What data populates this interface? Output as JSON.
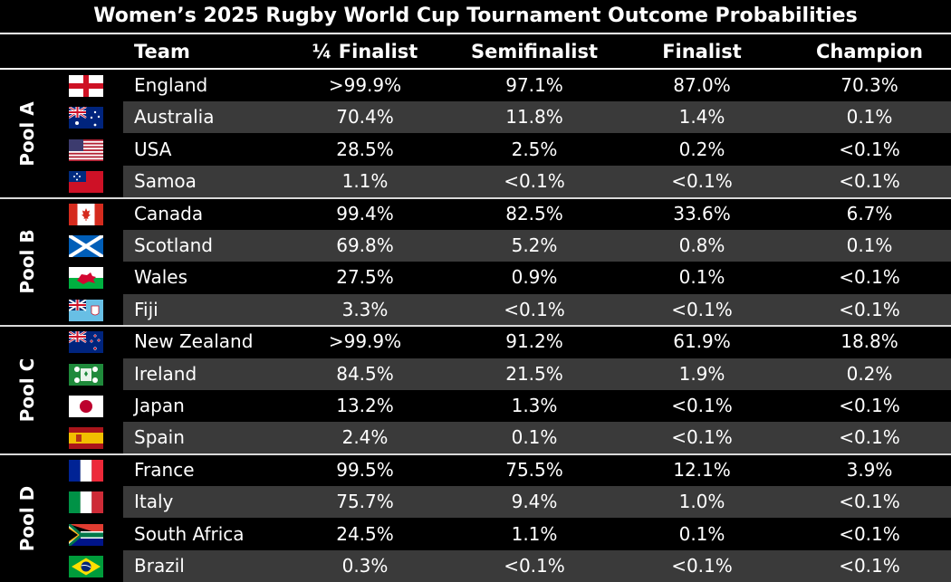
{
  "chart_data": {
    "type": "table",
    "title": "Women’s 2025 Rugby World Cup Tournament Outcome Probabilities",
    "columns": [
      "Team",
      "¼ Finalist",
      "Semifinalist",
      "Finalist",
      "Champion"
    ],
    "pools": [
      {
        "name": "Pool A",
        "teams": [
          {
            "team": "England",
            "flag": "england-flag-icon",
            "values": [
              ">99.9%",
              "97.1%",
              "87.0%",
              "70.3%"
            ]
          },
          {
            "team": "Australia",
            "flag": "australia-flag-icon",
            "values": [
              "70.4%",
              "11.8%",
              "1.4%",
              "0.1%"
            ]
          },
          {
            "team": "USA",
            "flag": "usa-flag-icon",
            "values": [
              "28.5%",
              "2.5%",
              "0.2%",
              "<0.1%"
            ]
          },
          {
            "team": "Samoa",
            "flag": "samoa-flag-icon",
            "values": [
              "1.1%",
              "<0.1%",
              "<0.1%",
              "<0.1%"
            ]
          }
        ]
      },
      {
        "name": "Pool B",
        "teams": [
          {
            "team": "Canada",
            "flag": "canada-flag-icon",
            "values": [
              "99.4%",
              "82.5%",
              "33.6%",
              "6.7%"
            ]
          },
          {
            "team": "Scotland",
            "flag": "scotland-flag-icon",
            "values": [
              "69.8%",
              "5.2%",
              "0.8%",
              "0.1%"
            ]
          },
          {
            "team": "Wales",
            "flag": "wales-flag-icon",
            "values": [
              "27.5%",
              "0.9%",
              "0.1%",
              "<0.1%"
            ]
          },
          {
            "team": "Fiji",
            "flag": "fiji-flag-icon",
            "values": [
              "3.3%",
              "<0.1%",
              "<0.1%",
              "<0.1%"
            ]
          }
        ]
      },
      {
        "name": "Pool C",
        "teams": [
          {
            "team": "New Zealand",
            "flag": "new-zealand-flag-icon",
            "values": [
              ">99.9%",
              "91.2%",
              "61.9%",
              "18.8%"
            ]
          },
          {
            "team": "Ireland",
            "flag": "ireland-flag-icon",
            "values": [
              "84.5%",
              "21.5%",
              "1.9%",
              "0.2%"
            ]
          },
          {
            "team": "Japan",
            "flag": "japan-flag-icon",
            "values": [
              "13.2%",
              "1.3%",
              "<0.1%",
              "<0.1%"
            ]
          },
          {
            "team": "Spain",
            "flag": "spain-flag-icon",
            "values": [
              "2.4%",
              "0.1%",
              "<0.1%",
              "<0.1%"
            ]
          }
        ]
      },
      {
        "name": "Pool D",
        "teams": [
          {
            "team": "France",
            "flag": "france-flag-icon",
            "values": [
              "99.5%",
              "75.5%",
              "12.1%",
              "3.9%"
            ]
          },
          {
            "team": "Italy",
            "flag": "italy-flag-icon",
            "values": [
              "75.7%",
              "9.4%",
              "1.0%",
              "<0.1%"
            ]
          },
          {
            "team": "South Africa",
            "flag": "south-africa-flag-icon",
            "values": [
              "24.5%",
              "1.1%",
              "0.1%",
              "<0.1%"
            ]
          },
          {
            "team": "Brazil",
            "flag": "brazil-flag-icon",
            "values": [
              "0.3%",
              "<0.1%",
              "<0.1%",
              "<0.1%"
            ]
          }
        ]
      }
    ]
  }
}
